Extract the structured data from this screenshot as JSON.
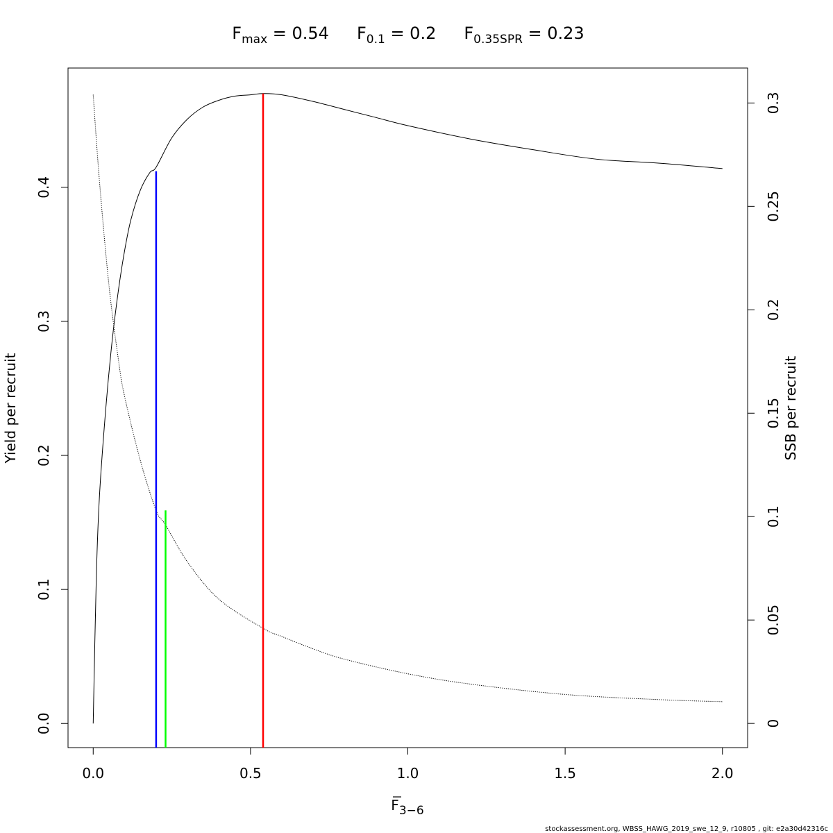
{
  "chart_data": {
    "type": "line",
    "title": {
      "fmax_main": "F",
      "fmax_sub": "max",
      "fmax_value": " = 0.54",
      "f01_main": "F",
      "f01_sub": "0.1",
      "f01_value": " = 0.2",
      "fspr_main": "F",
      "fspr_sub": "0.35SPR",
      "fspr_value": " = 0.23"
    },
    "xlabel_main": "F",
    "xlabel_sub": "3−6",
    "ylabel_left": "Yield per recruit",
    "ylabel_right": "SSB per recruit",
    "xlim": [
      -0.08,
      2.08
    ],
    "ylim_left": [
      -0.018,
      0.489
    ],
    "ylim_right": [
      -0.0117,
      0.3169
    ],
    "x_ticks": [
      0.0,
      0.5,
      1.0,
      1.5,
      2.0
    ],
    "x_tick_labels": [
      "0.0",
      "0.5",
      "1.0",
      "1.5",
      "2.0"
    ],
    "y_left_ticks": [
      0.0,
      0.1,
      0.2,
      0.3,
      0.4
    ],
    "y_left_tick_labels": [
      "0.0",
      "0.1",
      "0.2",
      "0.3",
      "0.4"
    ],
    "y_right_ticks": [
      0,
      0.05,
      0.1,
      0.15,
      0.2,
      0.25,
      0.3
    ],
    "y_right_tick_labels": [
      "0",
      "0.05",
      "0.1",
      "0.15",
      "0.2",
      "0.25",
      "0.3"
    ],
    "series": [
      {
        "axis": "left",
        "style": "solid",
        "color": "#000000",
        "x": [
          0,
          0.01,
          0.02,
          0.04,
          0.06,
          0.08,
          0.1,
          0.12,
          0.15,
          0.18,
          0.2,
          0.25,
          0.3,
          0.35,
          0.4,
          0.45,
          0.5,
          0.54,
          0.6,
          0.7,
          0.8,
          0.9,
          1.0,
          1.2,
          1.4,
          1.6,
          1.8,
          2.0
        ],
        "values": [
          0.0,
          0.11,
          0.17,
          0.235,
          0.285,
          0.323,
          0.353,
          0.376,
          0.398,
          0.411,
          0.415,
          0.437,
          0.451,
          0.46,
          0.465,
          0.468,
          0.469,
          0.47,
          0.469,
          0.464,
          0.458,
          0.452,
          0.446,
          0.436,
          0.428,
          0.421,
          0.418,
          0.414
        ]
      },
      {
        "axis": "right",
        "style": "dotted",
        "color": "#000000",
        "x": [
          0,
          0.02,
          0.05,
          0.08,
          0.1,
          0.15,
          0.2,
          0.23,
          0.3,
          0.4,
          0.54,
          0.6,
          0.7,
          0.8,
          1.0,
          1.2,
          1.5,
          1.8,
          2.0
        ],
        "values": [
          0.304,
          0.262,
          0.212,
          0.176,
          0.158,
          0.127,
          0.103,
          0.096,
          0.078,
          0.06,
          0.046,
          0.042,
          0.036,
          0.031,
          0.024,
          0.019,
          0.014,
          0.0115,
          0.0105
        ]
      }
    ],
    "reference_lines": [
      {
        "name": "Fmax",
        "x": 0.54,
        "y_top": 0.47,
        "color": "#ff0000"
      },
      {
        "name": "F0.1",
        "x": 0.2,
        "y_top": 0.412,
        "color": "#0000ff"
      },
      {
        "name": "F0.35SPR",
        "x": 0.23,
        "y_top": 0.159,
        "color": "#00ff00"
      }
    ],
    "grid": false,
    "footer": "stockassessment.org, WBSS_HAWG_2019_swe_12_9, r10805 , git: e2a30d42316c"
  }
}
